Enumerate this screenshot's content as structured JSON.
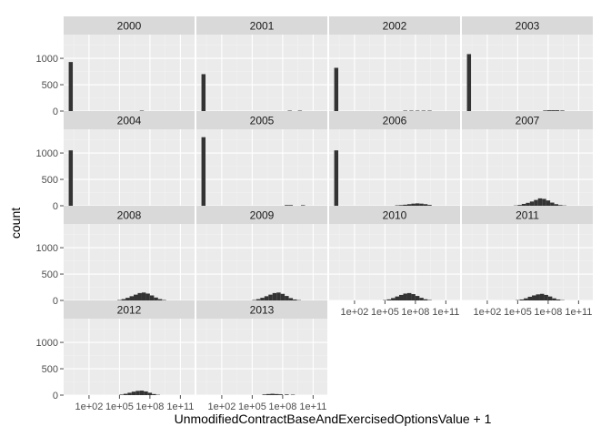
{
  "chart_data": {
    "type": "bar",
    "xlabel": "UnmodifiedContractBaseAndExercisedOptionsValue + 1",
    "ylabel": "count",
    "ylim": [
      0,
      1450
    ],
    "yticks": [
      0,
      500,
      1000
    ],
    "ytick_labels": [
      "0",
      "500",
      "1000"
    ],
    "xlim": [
      -5,
      124
    ],
    "xticks": [
      20,
      50,
      80,
      110
    ],
    "xtick_labels": [
      "1e+02",
      "1e+05",
      "1e+08",
      "1e+11"
    ],
    "x_units": "log10 offset (tick 1e+02 at 20, 1e+05 at 50, 1e+08 at 80, 1e+11 at 110)",
    "grid": true,
    "legend": "none",
    "colors": {
      "bar": "#333333",
      "panel": "#ebebeb",
      "strip": "#d9d9d9",
      "grid_major": "#ffffff",
      "grid_minor": "#f2f2f2"
    },
    "facets": [
      {
        "label": "2000",
        "bins": [
          [
            2,
            930
          ],
          [
            72,
            8
          ]
        ]
      },
      {
        "label": "2001",
        "bins": [
          [
            2,
            700
          ],
          [
            87,
            8
          ],
          [
            97,
            8
          ]
        ]
      },
      {
        "label": "2002",
        "bins": [
          [
            2,
            820
          ],
          [
            70,
            8
          ],
          [
            76,
            8
          ],
          [
            82,
            8
          ],
          [
            88,
            8
          ],
          [
            94,
            8
          ]
        ]
      },
      {
        "label": "2003",
        "bins": [
          [
            2,
            1080
          ],
          [
            77,
            10
          ],
          [
            81,
            15
          ],
          [
            85,
            15
          ],
          [
            89,
            15
          ],
          [
            94,
            10
          ]
        ]
      },
      {
        "label": "2004",
        "bins": [
          [
            2,
            1050
          ]
        ]
      },
      {
        "label": "2005",
        "bins": [
          [
            2,
            1300
          ],
          [
            84,
            12
          ],
          [
            88,
            12
          ],
          [
            100,
            10
          ]
        ]
      },
      {
        "label": "2006",
        "bins": [
          [
            2,
            1050
          ],
          [
            62,
            8
          ],
          [
            66,
            12
          ],
          [
            70,
            20
          ],
          [
            74,
            30
          ],
          [
            78,
            40
          ],
          [
            82,
            45
          ],
          [
            86,
            40
          ],
          [
            90,
            30
          ],
          [
            94,
            15
          ]
        ]
      },
      {
        "label": "2007",
        "bins": [
          [
            48,
            5
          ],
          [
            52,
            15
          ],
          [
            56,
            35
          ],
          [
            60,
            55
          ],
          [
            64,
            80
          ],
          [
            68,
            110
          ],
          [
            72,
            140
          ],
          [
            76,
            130
          ],
          [
            80,
            100
          ],
          [
            84,
            60
          ],
          [
            88,
            30
          ],
          [
            92,
            12
          ],
          [
            96,
            5
          ]
        ]
      },
      {
        "label": "2008",
        "bins": [
          [
            50,
            8
          ],
          [
            54,
            25
          ],
          [
            58,
            50
          ],
          [
            62,
            80
          ],
          [
            66,
            110
          ],
          [
            70,
            140
          ],
          [
            74,
            150
          ],
          [
            78,
            130
          ],
          [
            82,
            95
          ],
          [
            86,
            55
          ],
          [
            90,
            25
          ],
          [
            94,
            8
          ]
        ]
      },
      {
        "label": "2009",
        "bins": [
          [
            52,
            8
          ],
          [
            56,
            25
          ],
          [
            60,
            50
          ],
          [
            64,
            80
          ],
          [
            68,
            110
          ],
          [
            72,
            140
          ],
          [
            76,
            150
          ],
          [
            80,
            125
          ],
          [
            84,
            85
          ],
          [
            88,
            45
          ],
          [
            92,
            18
          ],
          [
            96,
            6
          ]
        ]
      },
      {
        "label": "2010",
        "bins": [
          [
            50,
            6
          ],
          [
            54,
            20
          ],
          [
            58,
            45
          ],
          [
            62,
            75
          ],
          [
            66,
            105
          ],
          [
            70,
            130
          ],
          [
            74,
            140
          ],
          [
            78,
            120
          ],
          [
            82,
            85
          ],
          [
            86,
            50
          ],
          [
            90,
            22
          ],
          [
            94,
            8
          ]
        ]
      },
      {
        "label": "2011",
        "bins": [
          [
            50,
            6
          ],
          [
            54,
            18
          ],
          [
            58,
            40
          ],
          [
            62,
            70
          ],
          [
            66,
            95
          ],
          [
            70,
            115
          ],
          [
            74,
            125
          ],
          [
            78,
            105
          ],
          [
            82,
            75
          ],
          [
            86,
            40
          ],
          [
            90,
            18
          ],
          [
            94,
            6
          ]
        ]
      },
      {
        "label": "2012",
        "bins": [
          [
            52,
            10
          ],
          [
            56,
            25
          ],
          [
            60,
            45
          ],
          [
            64,
            65
          ],
          [
            68,
            80
          ],
          [
            72,
            85
          ],
          [
            76,
            70
          ],
          [
            80,
            45
          ],
          [
            84,
            20
          ],
          [
            88,
            6
          ]
        ]
      },
      {
        "label": "2013",
        "bins": [
          [
            62,
            12
          ],
          [
            66,
            20
          ],
          [
            70,
            25
          ],
          [
            74,
            20
          ],
          [
            78,
            15
          ],
          [
            84,
            12
          ],
          [
            90,
            8
          ]
        ]
      }
    ]
  }
}
